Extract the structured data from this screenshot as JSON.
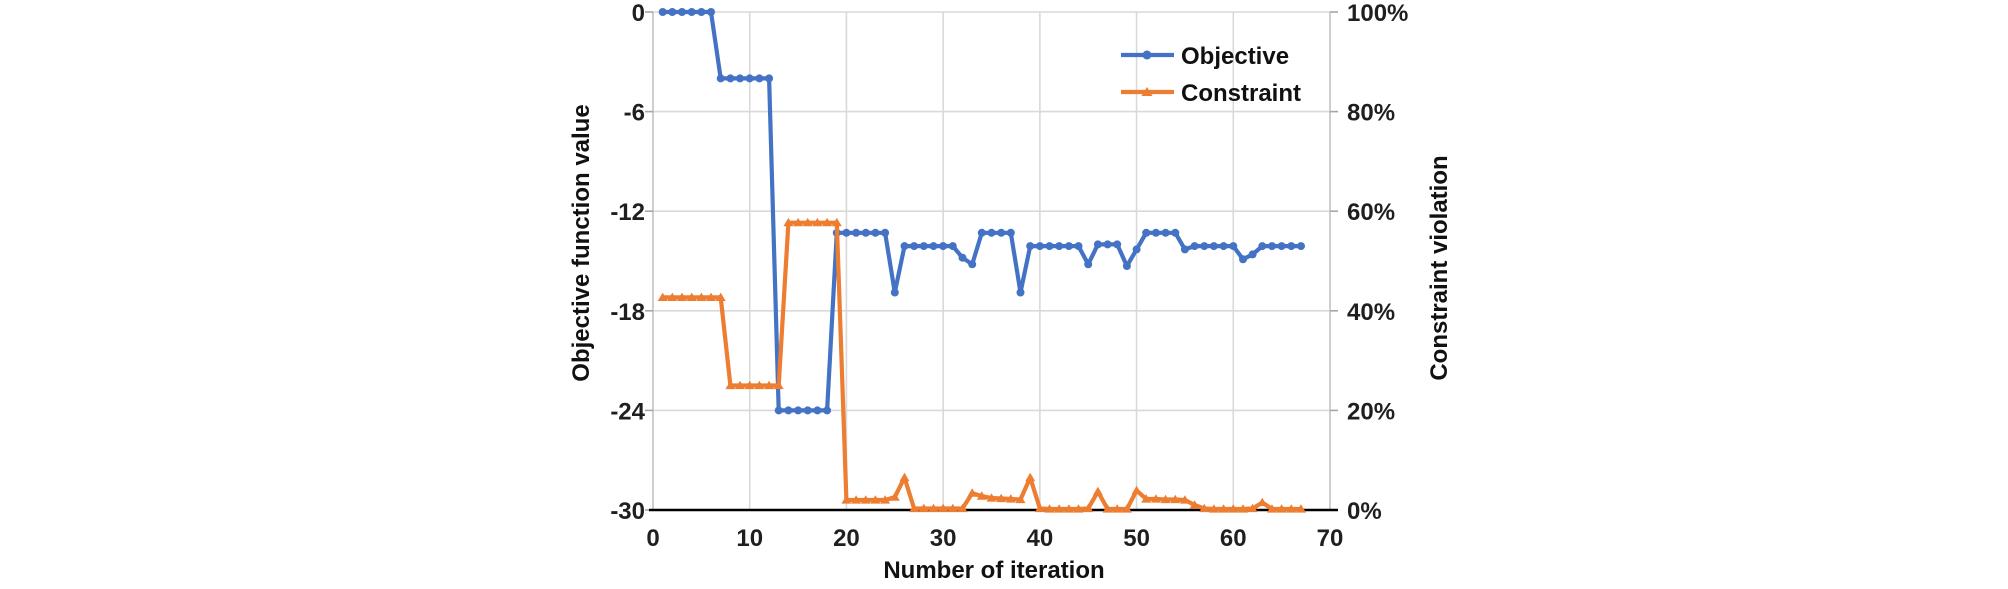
{
  "figure": {
    "background": "#ffffff",
    "colors": {
      "objective": "#4472C4",
      "constraint": "#ED7D31",
      "gridline": "#D9D9D9",
      "axis_edge": "#C2C2C2",
      "tick_mark": "#A6A6A6",
      "x_axis_line": "#000000",
      "text": "#1f1f1f"
    }
  },
  "chart_data": {
    "type": "line",
    "title": "",
    "grid": true,
    "legend_position": "inside-top-right",
    "x_axis": {
      "label": "Number of iteration",
      "min": 0,
      "max": 70,
      "ticks": [
        0,
        10,
        20,
        30,
        40,
        50,
        60,
        70
      ]
    },
    "y_left": {
      "label": "Objective function value",
      "min": -30,
      "max": 0,
      "ticks": [
        0,
        -6,
        -12,
        -18,
        -24,
        -30
      ]
    },
    "y_right": {
      "label": "Constraint violation",
      "min_percent": 0,
      "max_percent": 100,
      "ticks_percent": [
        100,
        80,
        60,
        40,
        20,
        0
      ],
      "tick_labels": [
        "100%",
        "80%",
        "60%",
        "40%",
        "20%",
        "0%"
      ]
    },
    "x": [
      1,
      2,
      3,
      4,
      5,
      6,
      7,
      8,
      9,
      10,
      11,
      12,
      13,
      14,
      15,
      16,
      17,
      18,
      19,
      20,
      21,
      22,
      23,
      24,
      25,
      26,
      27,
      28,
      29,
      30,
      31,
      32,
      33,
      34,
      35,
      36,
      37,
      38,
      39,
      40,
      41,
      42,
      43,
      44,
      45,
      46,
      47,
      48,
      49,
      50,
      51,
      52,
      53,
      54,
      55,
      56,
      57,
      58,
      59,
      60,
      61,
      62,
      63,
      64,
      65,
      66,
      67
    ],
    "series": [
      {
        "name": "Objective",
        "axis": "left",
        "color": "#4472C4",
        "marker": "circle",
        "values": [
          0,
          0,
          0,
          0,
          0,
          0,
          -4,
          -4,
          -4,
          -4,
          -4,
          -4,
          -24,
          -24,
          -24,
          -24,
          -24,
          -24,
          -13.3,
          -13.3,
          -13.3,
          -13.3,
          -13.3,
          -13.3,
          -16.9,
          -14.1,
          -14.1,
          -14.1,
          -14.1,
          -14.1,
          -14.1,
          -14.8,
          -15.2,
          -13.3,
          -13.3,
          -13.3,
          -13.3,
          -16.9,
          -14.1,
          -14.1,
          -14.1,
          -14.1,
          -14.1,
          -14.1,
          -15.2,
          -14,
          -14,
          -14,
          -15.3,
          -14.3,
          -13.3,
          -13.3,
          -13.3,
          -13.3,
          -14.3,
          -14.1,
          -14.1,
          -14.1,
          -14.1,
          -14.1,
          -14.9,
          -14.6,
          -14.1,
          -14.1,
          -14.1,
          -14.1,
          -14.1
        ]
      },
      {
        "name": "Constraint",
        "axis": "right",
        "color": "#ED7D31",
        "marker": "triangle",
        "values_percent": [
          42.7,
          42.7,
          42.7,
          42.7,
          42.7,
          42.7,
          42.7,
          25,
          25,
          25,
          25,
          25,
          25,
          57.7,
          57.7,
          57.7,
          57.7,
          57.7,
          57.7,
          2,
          2,
          2,
          2,
          2,
          2.6,
          6.5,
          0.3,
          0.3,
          0.3,
          0.3,
          0.3,
          0.3,
          3.4,
          2.8,
          2.4,
          2.3,
          2.2,
          2.1,
          6.5,
          0.3,
          0.2,
          0.2,
          0.2,
          0.2,
          0.3,
          3.7,
          0.2,
          0.2,
          0.2,
          3.9,
          2.2,
          2.2,
          2.1,
          2.1,
          2,
          1,
          0.3,
          0.2,
          0.2,
          0.2,
          0.2,
          0.3,
          1.5,
          0.2,
          0.2,
          0.2,
          0.2
        ]
      }
    ]
  }
}
